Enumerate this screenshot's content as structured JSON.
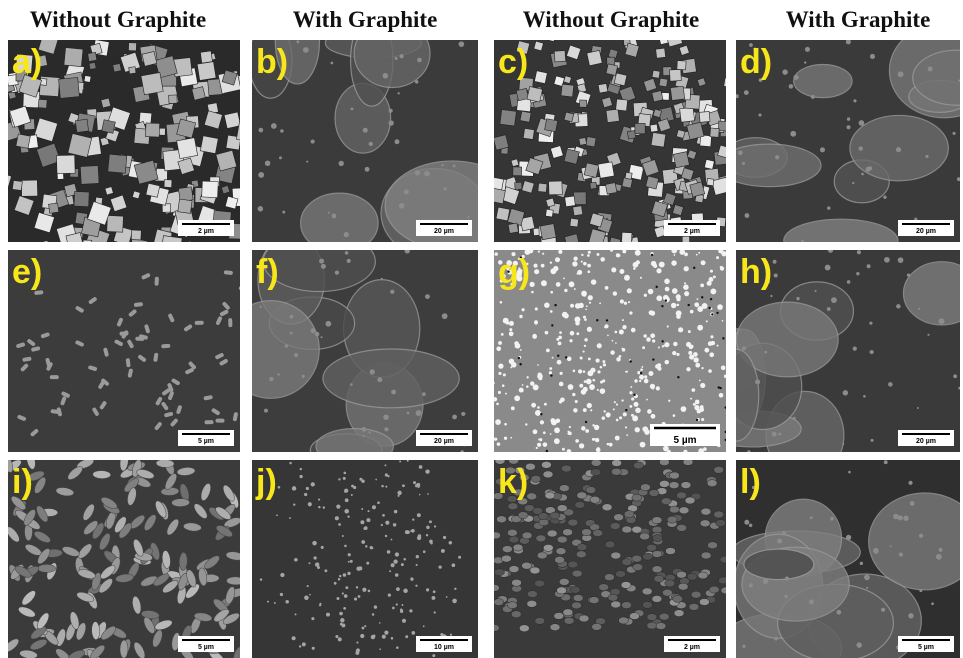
{
  "headers": [
    "Without Graphite",
    "With Graphite",
    "Without Graphite",
    "With Graphite"
  ],
  "panels": [
    {
      "label": "a)",
      "scale": "2 µm"
    },
    {
      "label": "b)",
      "scale": "20 µm"
    },
    {
      "label": "c)",
      "scale": "2 µm"
    },
    {
      "label": "d)",
      "scale": "20 µm"
    },
    {
      "label": "e)",
      "scale": "5 µm"
    },
    {
      "label": "f)",
      "scale": "20 µm"
    },
    {
      "label": "g)",
      "scale": "5 µm"
    },
    {
      "label": "h)",
      "scale": "20 µm"
    },
    {
      "label": "i)",
      "scale": "5 µm"
    },
    {
      "label": "j)",
      "scale": "10 µm"
    },
    {
      "label": "k)",
      "scale": "2 µm"
    },
    {
      "label": "l)",
      "scale": "5 µm"
    }
  ]
}
